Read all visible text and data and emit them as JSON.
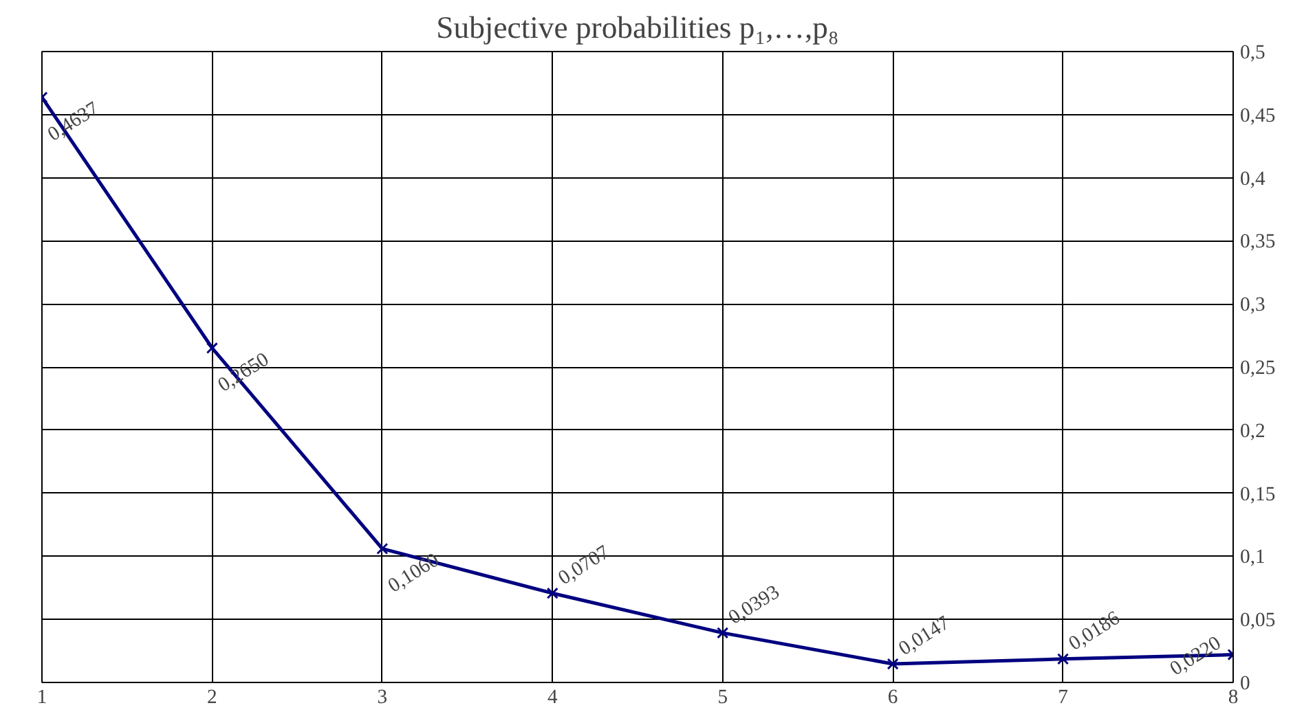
{
  "chart_data": {
    "type": "line",
    "title": "Subjective probabilities p₁,…,p₈",
    "x": [
      1,
      2,
      3,
      4,
      5,
      6,
      7,
      8
    ],
    "series": [
      {
        "color": "#000080",
        "values": [
          0.4637,
          0.265,
          0.106,
          0.0707,
          0.0393,
          0.0147,
          0.0186,
          0.022
        ],
        "value_labels": [
          "0,4637",
          "0,2650",
          "0,1060",
          "0,0707",
          "0,0393",
          "0,0147",
          "0,0186",
          "0,0220"
        ]
      }
    ],
    "xlim": [
      1,
      8
    ],
    "xticks": [
      1,
      2,
      3,
      4,
      5,
      6,
      7,
      8
    ],
    "ylim": [
      0,
      0.5
    ],
    "yticks": [
      {
        "value": 0,
        "label": "0"
      },
      {
        "value": 0.05,
        "label": "0,05"
      },
      {
        "value": 0.1,
        "label": "0,1"
      },
      {
        "value": 0.15,
        "label": "0,15"
      },
      {
        "value": 0.2,
        "label": "0,2"
      },
      {
        "value": 0.25,
        "label": "0,25"
      },
      {
        "value": 0.3,
        "label": "0,3"
      },
      {
        "value": 0.35,
        "label": "0,35"
      },
      {
        "value": 0.4,
        "label": "0,4"
      },
      {
        "value": 0.45,
        "label": "0,45"
      },
      {
        "value": 0.5,
        "label": "0,5"
      }
    ],
    "grid": true,
    "marker": "cross",
    "line_style": "solid"
  }
}
